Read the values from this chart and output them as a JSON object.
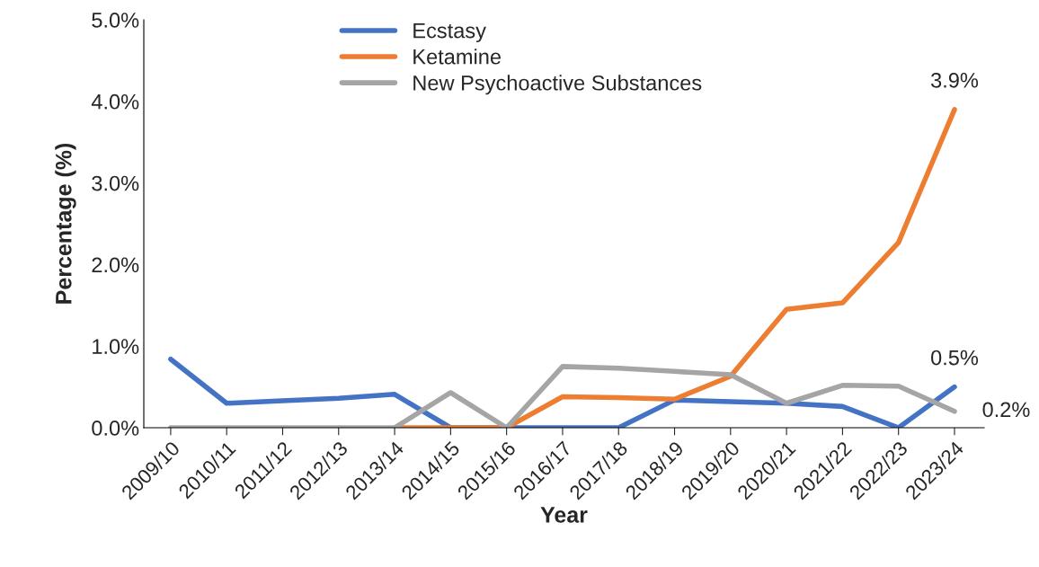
{
  "chart_data": {
    "type": "line",
    "xlabel": "Year",
    "ylabel": "Percentage (%)",
    "categories": [
      "2009/10",
      "2010/11",
      "2011/12",
      "2012/13",
      "2013/14",
      "2014/15",
      "2015/16",
      "2016/17",
      "2017/18",
      "2018/19",
      "2019/20",
      "2020/21",
      "2021/22",
      "2022/23",
      "2023/24"
    ],
    "series": [
      {
        "name": "Ecstasy",
        "color": "#4472c4",
        "values": [
          0.84,
          0.3,
          0.33,
          0.36,
          0.41,
          0,
          0,
          0,
          0,
          0.34,
          0.32,
          0.3,
          0.26,
          0,
          0.5
        ],
        "value_labels": [
          null,
          null,
          null,
          null,
          null,
          null,
          null,
          null,
          null,
          null,
          null,
          null,
          null,
          null,
          "0.5%"
        ]
      },
      {
        "name": "Ketamine",
        "color": "#ed7d31",
        "values": [
          null,
          null,
          null,
          null,
          0,
          0,
          0,
          0.38,
          0.37,
          0.35,
          0.63,
          1.45,
          1.53,
          2.27,
          3.9
        ],
        "value_labels": [
          null,
          null,
          null,
          null,
          null,
          null,
          null,
          null,
          null,
          null,
          null,
          null,
          null,
          null,
          "3.9%"
        ]
      },
      {
        "name": "New Psychoactive Substances",
        "color": "#a5a5a5",
        "values": [
          0,
          0,
          0,
          0,
          0,
          0.43,
          0,
          0.75,
          0.73,
          0.69,
          0.65,
          0.3,
          0.52,
          0.51,
          0.2
        ],
        "value_labels": [
          null,
          null,
          null,
          null,
          null,
          null,
          null,
          null,
          null,
          null,
          null,
          null,
          null,
          null,
          "0.2%"
        ]
      }
    ],
    "ylim": [
      0,
      5
    ],
    "yticks": [
      {
        "value": 0,
        "label": "0.0%"
      },
      {
        "value": 1,
        "label": "1.0%"
      },
      {
        "value": 2,
        "label": "2.0%"
      },
      {
        "value": 3,
        "label": "3.0%"
      },
      {
        "value": 4,
        "label": "4.0%"
      },
      {
        "value": 5,
        "label": "5.0%"
      }
    ],
    "grid": false,
    "legend": "top",
    "marker": "none",
    "line_style": "solid"
  }
}
